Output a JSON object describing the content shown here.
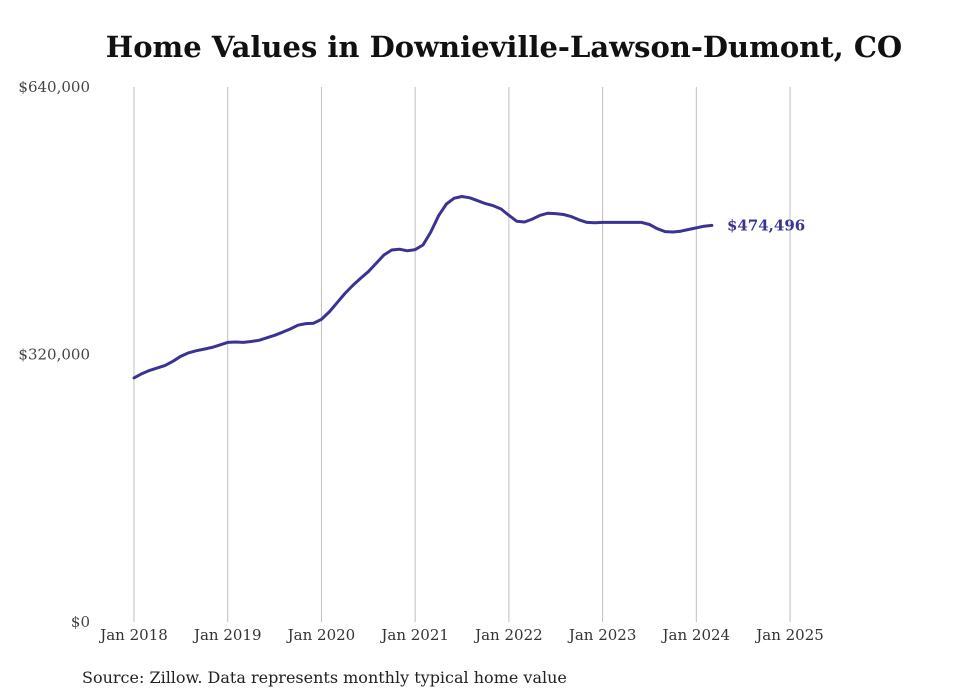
{
  "chart_data": {
    "type": "line",
    "title": "Home Values in Downieville-Lawson-Dumont, CO",
    "xlabel": "",
    "ylabel": "",
    "ylim": [
      0,
      640000
    ],
    "yticks": [
      {
        "value": 0,
        "label": "$0"
      },
      {
        "value": 320000,
        "label": "$320,000"
      },
      {
        "value": 640000,
        "label": "$640,000"
      }
    ],
    "xticks": [
      {
        "t": 0,
        "label": "Jan 2018"
      },
      {
        "t": 12,
        "label": "Jan 2019"
      },
      {
        "t": 24,
        "label": "Jan 2020"
      },
      {
        "t": 36,
        "label": "Jan 2021"
      },
      {
        "t": 48,
        "label": "Jan 2022"
      },
      {
        "t": 60,
        "label": "Jan 2023"
      },
      {
        "t": 72,
        "label": "Jan 2024"
      },
      {
        "t": 84,
        "label": "Jan 2025"
      }
    ],
    "x_units": "months since Jan 2018",
    "grid": "vertical",
    "series": [
      {
        "name": "Typical home value",
        "color": "#3b3394",
        "end_label": "$474,496",
        "points": [
          [
            0,
            292000
          ],
          [
            1,
            297000
          ],
          [
            2,
            301000
          ],
          [
            3,
            304000
          ],
          [
            4,
            307000
          ],
          [
            5,
            312000
          ],
          [
            6,
            318000
          ],
          [
            7,
            322000
          ],
          [
            8,
            324500
          ],
          [
            9,
            326500
          ],
          [
            10,
            328500
          ],
          [
            11,
            331500
          ],
          [
            12,
            334500
          ],
          [
            13,
            335000
          ],
          [
            14,
            334500
          ],
          [
            15,
            335500
          ],
          [
            16,
            337000
          ],
          [
            17,
            340000
          ],
          [
            18,
            343000
          ],
          [
            19,
            346500
          ],
          [
            20,
            350500
          ],
          [
            21,
            355000
          ],
          [
            22,
            357000
          ],
          [
            23,
            357500
          ],
          [
            24,
            362000
          ],
          [
            25,
            371000
          ],
          [
            26,
            382000
          ],
          [
            27,
            393000
          ],
          [
            28,
            402500
          ],
          [
            29,
            411000
          ],
          [
            30,
            419000
          ],
          [
            31,
            429000
          ],
          [
            32,
            439000
          ],
          [
            33,
            445000
          ],
          [
            34,
            446000
          ],
          [
            35,
            444000
          ],
          [
            36,
            445500
          ],
          [
            37,
            451000
          ],
          [
            38,
            466500
          ],
          [
            39,
            486000
          ],
          [
            40,
            500000
          ],
          [
            41,
            507000
          ],
          [
            42,
            509000
          ],
          [
            43,
            507500
          ],
          [
            44,
            504000
          ],
          [
            45,
            500500
          ],
          [
            46,
            498000
          ],
          [
            47,
            494000
          ],
          [
            48,
            486500
          ],
          [
            49,
            479500
          ],
          [
            50,
            478500
          ],
          [
            51,
            482000
          ],
          [
            52,
            486500
          ],
          [
            53,
            489000
          ],
          [
            54,
            488500
          ],
          [
            55,
            487500
          ],
          [
            56,
            485000
          ],
          [
            57,
            481000
          ],
          [
            58,
            478000
          ],
          [
            59,
            477500
          ],
          [
            60,
            478000
          ],
          [
            61,
            478000
          ],
          [
            62,
            478000
          ],
          [
            63,
            478000
          ],
          [
            64,
            478000
          ],
          [
            65,
            478000
          ],
          [
            66,
            475500
          ],
          [
            67,
            470500
          ],
          [
            68,
            467000
          ],
          [
            69,
            466500
          ],
          [
            70,
            467500
          ],
          [
            71,
            469500
          ],
          [
            72,
            471500
          ],
          [
            73,
            473500
          ],
          [
            74,
            474496
          ]
        ]
      }
    ],
    "source": "Source: Zillow. Data represents monthly typical home value"
  }
}
